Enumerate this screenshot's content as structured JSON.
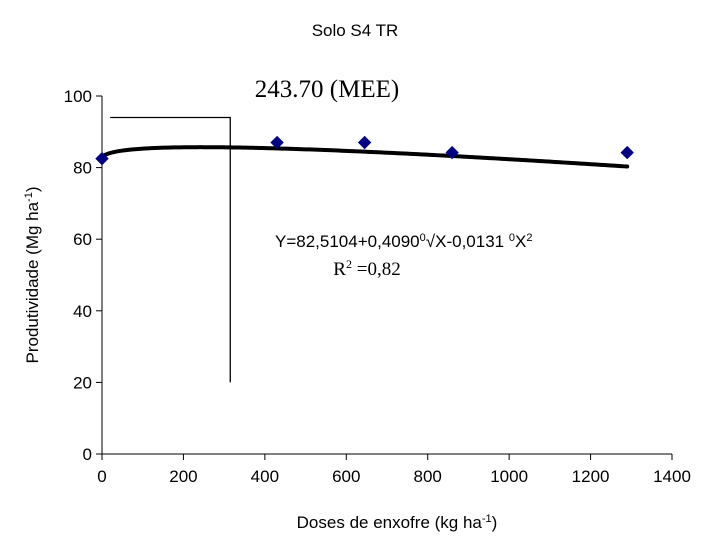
{
  "chart_data": {
    "type": "scatter",
    "title": "Solo S4 TR",
    "xlabel": {
      "main": "Doses de enxofre (kg ha",
      "sup": "-1",
      "end": ")"
    },
    "ylabel": {
      "main": "Produtividade (Mg ha",
      "sup": "-1",
      "end": ")"
    },
    "xlim": [
      0,
      1400
    ],
    "ylim": [
      0,
      100
    ],
    "xticks": [
      0,
      200,
      400,
      600,
      800,
      1000,
      1200,
      1400
    ],
    "yticks": [
      0,
      20,
      40,
      60,
      80,
      100
    ],
    "grid": false,
    "marker_color": "#000080",
    "series": [
      {
        "marker": "diamond",
        "x": [
          0,
          430,
          645,
          860,
          1290
        ],
        "y": [
          82.5,
          87,
          87,
          84.2,
          84.2
        ]
      }
    ],
    "fit": {
      "type": "line",
      "intercept": 82.5104,
      "sqrt_coef": 0.409,
      "lin_coef": -0.0131
    },
    "annotations": {
      "mee_label": "243.70 (MEE)",
      "mee_x": 315,
      "mee_y_bottom": 20,
      "mee_y_top": 94,
      "mee_x_start": 20,
      "equation": {
        "p1": "Y=82,5104+0,4090",
        "s1": "0",
        "p2": "√X-0,0131 ",
        "s2": "0",
        "p3": "X",
        "s3": "2"
      },
      "r2": {
        "p1": "R",
        "s1": "2",
        "p2": " =0,82"
      }
    }
  }
}
